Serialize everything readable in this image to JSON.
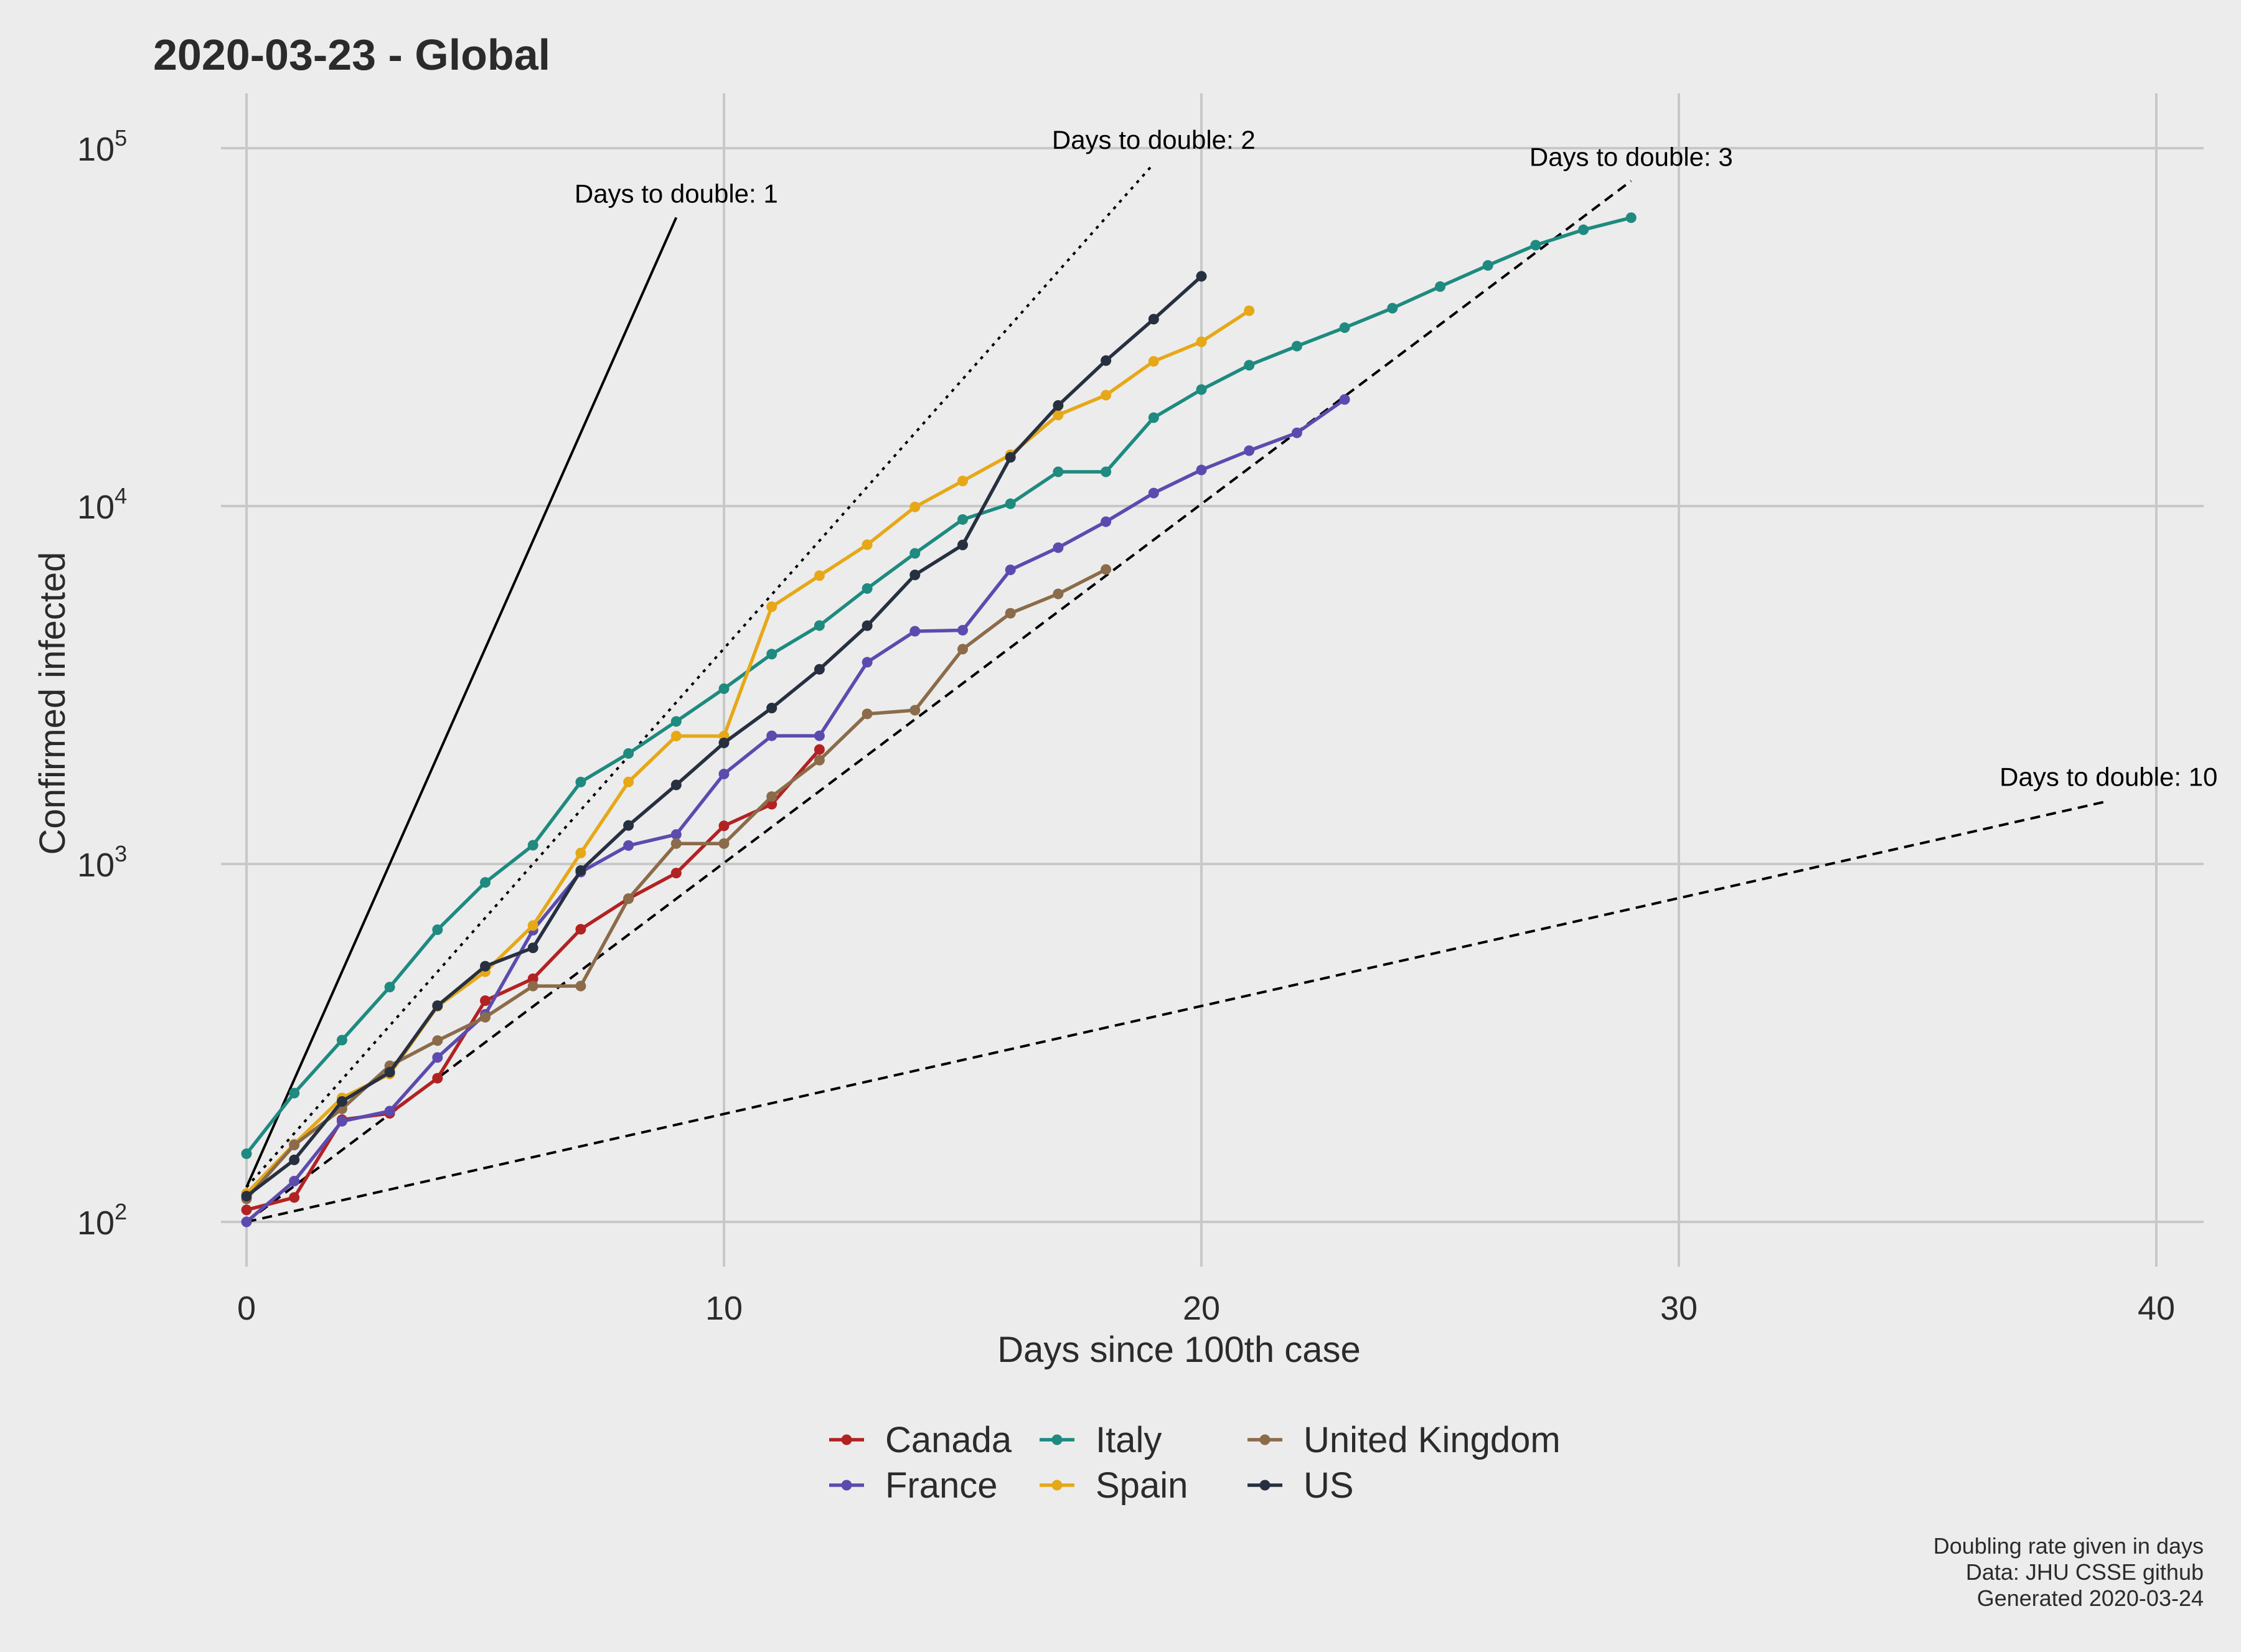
{
  "chart_data": {
    "type": "line",
    "title": "2020-03-23  - Global",
    "xlabel": "Days since 100th case",
    "ylabel": "Confirmed infected",
    "y_scale": "log10",
    "xlim": [
      -2,
      41
    ],
    "ylim": [
      75,
      140000
    ],
    "x_ticks": [
      0,
      10,
      20,
      30,
      40
    ],
    "y_ticks": [
      {
        "value": 100,
        "base": "10",
        "exp": "2"
      },
      {
        "value": 1000,
        "base": "10",
        "exp": "3"
      },
      {
        "value": 10000,
        "base": "10",
        "exp": "4"
      },
      {
        "value": 100000,
        "base": "10",
        "exp": "5"
      }
    ],
    "grid": true,
    "legend_position": "bottom",
    "series": [
      {
        "name": "Canada",
        "color": "#b22222",
        "x": [
          0,
          1,
          2,
          3,
          4,
          5,
          6,
          7,
          8,
          9,
          10,
          11,
          12
        ],
        "y": [
          108,
          117,
          193,
          201,
          252,
          415,
          478,
          657,
          800,
          943,
          1278,
          1469,
          2088
        ]
      },
      {
        "name": "France",
        "color": "#5b4baf",
        "x": [
          0,
          1,
          2,
          3,
          4,
          5,
          6,
          7,
          8,
          9,
          10,
          11,
          12,
          13,
          14,
          15,
          16,
          17,
          18,
          19,
          20,
          21,
          22,
          23
        ],
        "y": [
          100,
          130,
          191,
          204,
          288,
          380,
          653,
          949,
          1126,
          1209,
          1784,
          2281,
          2281,
          3661,
          4469,
          4499,
          6633,
          7652,
          9043,
          10871,
          12612,
          14282,
          16018,
          19856
        ]
      },
      {
        "name": "Italy",
        "color": "#1e8a80",
        "x": [
          0,
          1,
          2,
          3,
          4,
          5,
          6,
          7,
          8,
          9,
          10,
          11,
          12,
          13,
          14,
          15,
          16,
          17,
          18,
          19,
          20,
          21,
          22,
          23,
          24,
          25,
          26,
          27,
          28,
          29
        ],
        "y": [
          155,
          229,
          322,
          453,
          655,
          888,
          1128,
          1694,
          2036,
          2502,
          3089,
          3858,
          4636,
          5883,
          7375,
          9172,
          10149,
          12462,
          12462,
          17660,
          21157,
          24747,
          27980,
          31506,
          35713,
          41035,
          47021,
          53578,
          59138,
          63927
        ]
      },
      {
        "name": "Spain",
        "color": "#e6a817",
        "x": [
          0,
          1,
          2,
          3,
          4,
          5,
          6,
          7,
          8,
          9,
          10,
          11,
          12,
          13,
          14,
          15,
          16,
          17,
          18,
          19,
          20,
          21
        ],
        "y": [
          120,
          165,
          222,
          259,
          400,
          500,
          673,
          1073,
          1695,
          2277,
          2277,
          5232,
          6391,
          7798,
          9942,
          11748,
          13910,
          17963,
          20410,
          25374,
          28768,
          35136
        ]
      },
      {
        "name": "United Kingdom",
        "color": "#8b6b4a",
        "x": [
          0,
          1,
          2,
          3,
          4,
          5,
          6,
          7,
          8,
          9,
          10,
          11,
          12,
          13,
          14,
          15,
          16,
          17,
          18
        ],
        "y": [
          116,
          164,
          207,
          273,
          321,
          373,
          456,
          456,
          800,
          1140,
          1140,
          1543,
          1950,
          2626,
          2689,
          3983,
          5018,
          5683,
          6650
        ]
      },
      {
        "name": "US",
        "color": "#263040",
        "x": [
          0,
          1,
          2,
          3,
          4,
          5,
          6,
          7,
          8,
          9,
          10,
          11,
          12,
          13,
          14,
          15,
          16,
          17,
          18,
          19,
          20
        ],
        "y": [
          118,
          149,
          217,
          262,
          402,
          518,
          583,
          959,
          1281,
          1663,
          2179,
          2727,
          3499,
          4632,
          6421,
          7786,
          13680,
          19101,
          25493,
          33276,
          43847
        ]
      }
    ],
    "guides": [
      {
        "label": "Days to double: 1",
        "doubling_days": 1,
        "x": [
          0,
          9
        ],
        "y": [
          125,
          64000
        ],
        "dash": "solid"
      },
      {
        "label": "Days to double: 2",
        "doubling_days": 2,
        "x": [
          0,
          19
        ],
        "y": [
          125,
          90500
        ],
        "dash": "dotted"
      },
      {
        "label": "Days to double: 3",
        "doubling_days": 3,
        "x": [
          0,
          29
        ],
        "y": [
          100,
          81000
        ],
        "dash": "dashed"
      },
      {
        "label": "Days to double: 10",
        "doubling_days": 10,
        "x": [
          0,
          39
        ],
        "y": [
          100,
          1500
        ],
        "dash": "dashed"
      }
    ],
    "caption": [
      "Doubling rate given in days",
      "Data: JHU CSSE github",
      "Generated 2020-03-24"
    ]
  }
}
